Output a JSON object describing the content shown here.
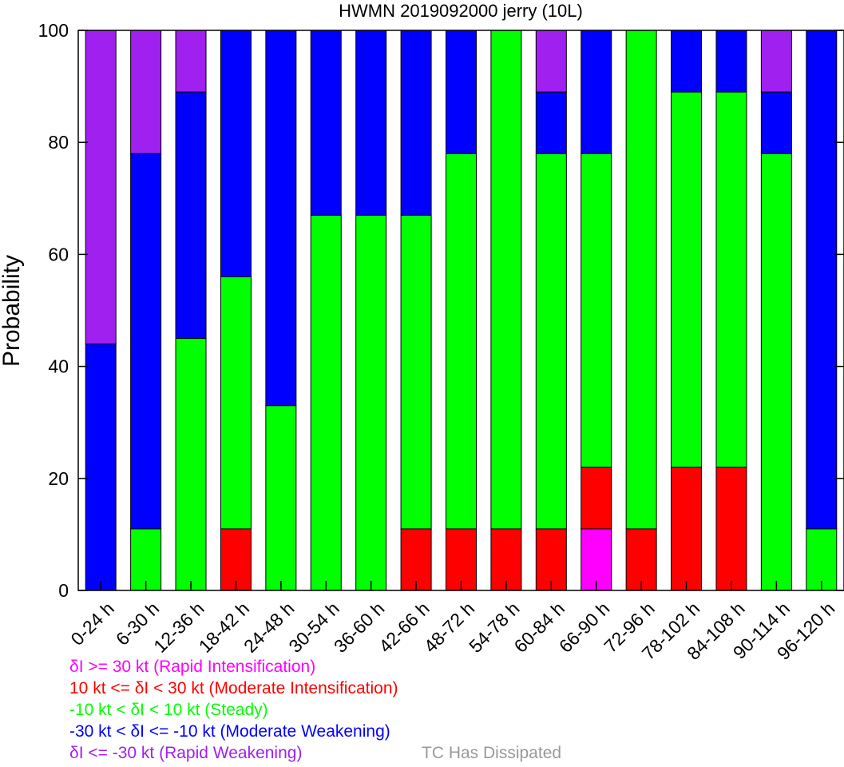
{
  "chart_data": {
    "type": "bar",
    "stacked": true,
    "title": "HWMN 2019092000 jerry (10L)",
    "xlabel": "",
    "ylabel": "Probability",
    "ylim": [
      0,
      100
    ],
    "yticks": [
      0,
      20,
      40,
      60,
      80,
      100
    ],
    "categories": [
      "0-24 h",
      "6-30 h",
      "12-36 h",
      "18-42 h",
      "24-48 h",
      "30-54 h",
      "36-60 h",
      "42-66 h",
      "48-72 h",
      "54-78 h",
      "60-84 h",
      "66-90 h",
      "72-96 h",
      "78-102 h",
      "84-108 h",
      "90-114 h",
      "96-120 h"
    ],
    "series": [
      {
        "name": "δI >= 30 kt (Rapid Intensification)",
        "color": "#ff00ff",
        "values": [
          0,
          0,
          0,
          0,
          0,
          0,
          0,
          0,
          0,
          0,
          0,
          11,
          0,
          0,
          0,
          0,
          0
        ]
      },
      {
        "name": "10 kt <= δI < 30 kt (Moderate Intensification)",
        "color": "#ff0000",
        "values": [
          0,
          0,
          0,
          11,
          0,
          0,
          0,
          11,
          11,
          11,
          11,
          11,
          11,
          22,
          22,
          0,
          0
        ]
      },
      {
        "name": "-10 kt < δI < 10 kt (Steady)",
        "color": "#00ff00",
        "values": [
          0,
          11,
          45,
          45,
          33,
          67,
          67,
          56,
          67,
          89,
          67,
          56,
          89,
          67,
          67,
          78,
          11
        ]
      },
      {
        "name": "-30 kt < δI <= -10 kt (Moderate Weakening)",
        "color": "#0000ff",
        "values": [
          44,
          67,
          44,
          44,
          67,
          33,
          33,
          33,
          22,
          0,
          11,
          22,
          0,
          11,
          11,
          11,
          89
        ]
      },
      {
        "name": "δI <= -30 kt (Rapid Weakening)",
        "color": "#a020f0",
        "values": [
          56,
          22,
          11,
          0,
          0,
          0,
          0,
          0,
          0,
          0,
          11,
          0,
          0,
          0,
          0,
          11,
          0
        ]
      }
    ],
    "dissipated_label": "TC Has Dissipated",
    "dissipated_color": "#999999",
    "grid": false,
    "legend_position": "bottom-left"
  }
}
